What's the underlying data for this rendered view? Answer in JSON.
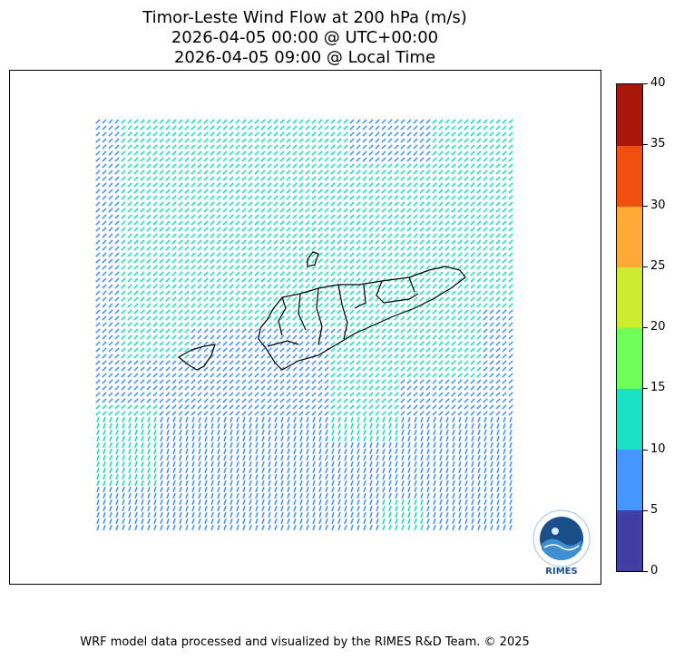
{
  "title": {
    "line1": "Timor-Leste Wind Flow at 200 hPa (m/s)",
    "line2": "2026-04-05 00:00 @ UTC+00:00",
    "line3": "2026-04-05 09:00 @ Local Time"
  },
  "colorbar": {
    "ticks": [
      "0",
      "5",
      "10",
      "15",
      "20",
      "25",
      "30",
      "35",
      "40"
    ],
    "colors": [
      "#3f3fa6",
      "#4696ff",
      "#1be1c4",
      "#6dff5a",
      "#cdec2f",
      "#ffaa37",
      "#f14f10",
      "#a9170a"
    ]
  },
  "wind": {
    "color_slow": "#4696ff",
    "color_fast": "#1be1c4"
  },
  "logo": {
    "text": "RIMES",
    "ring_text": "Regional Integrated Multi-Hazard Early Warning System"
  },
  "footer": "WRF model data processed and visualized by the RIMES R&D Team. © 2025"
}
